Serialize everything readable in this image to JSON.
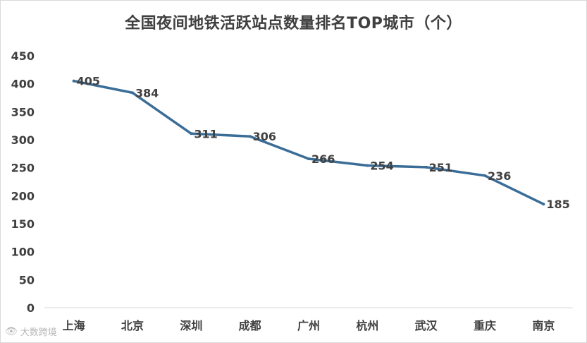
{
  "chart_data": {
    "type": "line",
    "title": "全国夜间地铁活跃站点数量排名TOP城市（个）",
    "categories": [
      "上海",
      "北京",
      "深圳",
      "成都",
      "广州",
      "杭州",
      "武汉",
      "重庆",
      "南京"
    ],
    "series": [
      {
        "values": [
          405,
          384,
          311,
          306,
          266,
          254,
          251,
          236,
          185
        ]
      }
    ],
    "ylim": [
      0,
      450
    ],
    "yticks": [
      0,
      50,
      100,
      150,
      200,
      250,
      300,
      350,
      400,
      450
    ],
    "grid": false,
    "line_color": "#3a6d97",
    "data_labels": true
  },
  "watermark": {
    "text": "大数跨境",
    "icon": "eye-logo-icon"
  }
}
